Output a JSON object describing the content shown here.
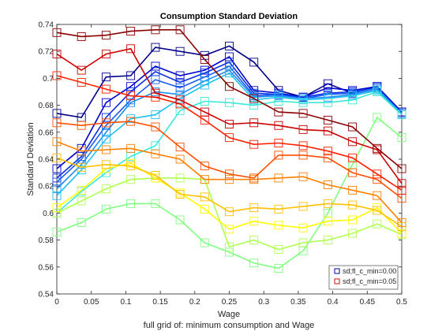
{
  "chart_data": {
    "type": "line",
    "title": "Consumption Standard Deviation",
    "xlabel": "Wage",
    "ylabel": "Standard Deviation",
    "footnote": "full grid of: minimum consumption and Wage",
    "xlim": [
      0,
      0.5
    ],
    "ylim": [
      0.54,
      0.74
    ],
    "xticks": [
      "0",
      "0.05",
      "0.1",
      "0.15",
      "0.2",
      "0.25",
      "0.3",
      "0.35",
      "0.4",
      "0.45",
      "0.5"
    ],
    "yticks": [
      "0.54",
      "0.56",
      "0.58",
      "0.6",
      "0.62",
      "0.64",
      "0.66",
      "0.68",
      "0.7",
      "0.72",
      "0.74"
    ],
    "grid": false,
    "legend_position": "bottom-right",
    "legend": [
      {
        "label": "sd;fl_c_min=0.00",
        "color": "#0000b0"
      },
      {
        "label": "sd;fl_c_min=0.05",
        "color": "#cc1010"
      }
    ],
    "x": [
      0,
      0.0357,
      0.0714,
      0.1071,
      0.1429,
      0.1786,
      0.2143,
      0.25,
      0.2857,
      0.3214,
      0.3571,
      0.3929,
      0.4286,
      0.4643,
      0.5
    ],
    "series": [
      {
        "color": "#00008b",
        "values": [
          0.674,
          0.671,
          0.701,
          0.702,
          0.723,
          0.72,
          0.717,
          0.724,
          0.712,
          0.691,
          0.686,
          0.696,
          0.689,
          0.694,
          0.675
        ]
      },
      {
        "color": "#0000cd",
        "values": [
          0.633,
          0.648,
          0.682,
          0.694,
          0.709,
          0.702,
          0.706,
          0.716,
          0.691,
          0.689,
          0.686,
          0.693,
          0.691,
          0.694,
          0.675
        ]
      },
      {
        "color": "#0a2ee0",
        "values": [
          0.626,
          0.642,
          0.671,
          0.69,
          0.705,
          0.697,
          0.704,
          0.712,
          0.689,
          0.688,
          0.686,
          0.689,
          0.69,
          0.693,
          0.674
        ]
      },
      {
        "color": "#1a5cf0",
        "values": [
          0.623,
          0.64,
          0.665,
          0.684,
          0.699,
          0.693,
          0.701,
          0.709,
          0.687,
          0.688,
          0.685,
          0.688,
          0.689,
          0.693,
          0.674
        ]
      },
      {
        "color": "#1e8cf5",
        "values": [
          0.618,
          0.636,
          0.66,
          0.682,
          0.69,
          0.688,
          0.698,
          0.706,
          0.686,
          0.687,
          0.685,
          0.686,
          0.688,
          0.692,
          0.674
        ]
      },
      {
        "color": "#20c0f0",
        "values": [
          0.613,
          0.632,
          0.655,
          0.67,
          0.673,
          0.685,
          0.695,
          0.704,
          0.684,
          0.686,
          0.684,
          0.685,
          0.687,
          0.691,
          0.673
        ]
      },
      {
        "color": "#3ae8d8",
        "values": [
          0.6,
          0.616,
          0.63,
          0.642,
          0.65,
          0.676,
          0.683,
          0.682,
          0.68,
          0.683,
          0.682,
          0.682,
          0.684,
          0.69,
          0.673
        ]
      },
      {
        "color": "#80ff80",
        "values": [
          0.586,
          0.593,
          0.603,
          0.607,
          0.607,
          0.595,
          0.578,
          0.571,
          0.563,
          0.559,
          0.572,
          0.6,
          0.636,
          0.671,
          0.656
        ]
      },
      {
        "color": "#b0ff50",
        "values": [
          0.6,
          0.609,
          0.618,
          0.625,
          0.626,
          0.626,
          0.625,
          0.575,
          0.58,
          0.573,
          0.578,
          0.58,
          0.585,
          0.592,
          0.584
        ]
      },
      {
        "color": "#ffff00",
        "values": [
          0.604,
          0.617,
          0.633,
          0.637,
          0.626,
          0.615,
          0.603,
          0.588,
          0.594,
          0.591,
          0.589,
          0.594,
          0.595,
          0.604,
          0.585
        ]
      },
      {
        "color": "#ffc000",
        "values": [
          0.641,
          0.634,
          0.636,
          0.635,
          0.628,
          0.614,
          0.612,
          0.601,
          0.604,
          0.603,
          0.605,
          0.607,
          0.606,
          0.602,
          0.59
        ]
      },
      {
        "color": "#ff8000",
        "values": [
          0.653,
          0.646,
          0.647,
          0.648,
          0.644,
          0.64,
          0.625,
          0.625,
          0.625,
          0.626,
          0.627,
          0.621,
          0.617,
          0.613,
          0.593
        ]
      },
      {
        "color": "#ff5000",
        "values": [
          0.667,
          0.665,
          0.667,
          0.668,
          0.664,
          0.649,
          0.635,
          0.629,
          0.626,
          0.643,
          0.643,
          0.641,
          0.63,
          0.625,
          0.611
        ]
      },
      {
        "color": "#ff2000",
        "values": [
          0.702,
          0.697,
          0.692,
          0.687,
          0.686,
          0.681,
          0.669,
          0.656,
          0.651,
          0.652,
          0.65,
          0.646,
          0.641,
          0.629,
          0.617
        ]
      },
      {
        "color": "#cc0000",
        "values": [
          0.718,
          0.706,
          0.718,
          0.722,
          0.689,
          0.684,
          0.675,
          0.666,
          0.667,
          0.665,
          0.662,
          0.661,
          0.653,
          0.647,
          0.622
        ]
      },
      {
        "color": "#8b0000",
        "values": [
          0.734,
          0.731,
          0.732,
          0.735,
          0.736,
          0.736,
          0.714,
          0.694,
          0.685,
          0.675,
          0.674,
          0.669,
          0.664,
          0.648,
          0.633
        ]
      }
    ]
  }
}
